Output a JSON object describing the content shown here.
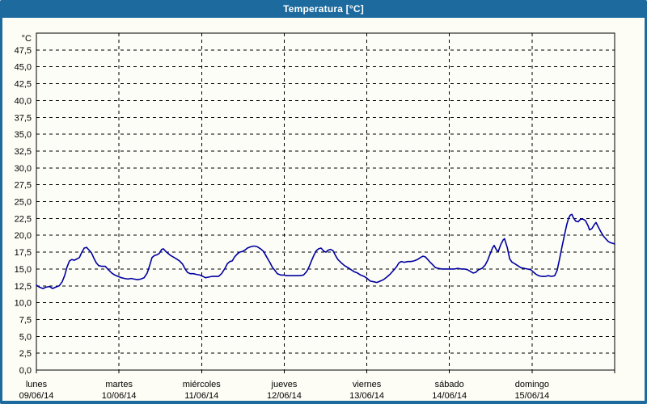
{
  "window": {
    "title": "Temperatura [°C]"
  },
  "colors": {
    "titlebar_bg": "#1d6a9e",
    "frame_border": "#1d6a9e",
    "title_text": "#ffffff",
    "content_bg": "#fdfdf5",
    "plot_bg": "#fdfdf7",
    "line": "#0000a0",
    "grid": "#000000",
    "axis": "#000000",
    "label_text": "#000000"
  },
  "chart_data": {
    "type": "line",
    "title": "Temperatura [°C]",
    "grid": "dashed",
    "legend": "none",
    "y_axis": {
      "unit_label": "°C",
      "min": 0,
      "max_visible_tick": 47.5,
      "axis_top": 50,
      "tick_step": 2.5,
      "tick_labels_bottom_to_top": [
        "0,0",
        "2,5",
        "5,0",
        "7,5",
        "10,0",
        "12,5",
        "15,0",
        "17,5",
        "20,0",
        "22,5",
        "25,0",
        "27,5",
        "30,0",
        "32,5",
        "35,0",
        "37,5",
        "40,0",
        "42,5",
        "45,0",
        "47,5"
      ]
    },
    "x_axis": {
      "total_hours": 168,
      "hours_per_day": 24,
      "days": [
        {
          "name": "lunes",
          "date": "09/06/14"
        },
        {
          "name": "martes",
          "date": "10/06/14"
        },
        {
          "name": "miércoles",
          "date": "11/06/14"
        },
        {
          "name": "jueves",
          "date": "12/06/14"
        },
        {
          "name": "viernes",
          "date": "13/06/14"
        },
        {
          "name": "sábado",
          "date": "14/06/14"
        },
        {
          "name": "domingo",
          "date": "15/06/14"
        }
      ]
    },
    "series": [
      {
        "name": "Temperatura",
        "color": "#0000a0",
        "points": [
          [
            0.0,
            12.6
          ],
          [
            0.9,
            12.3
          ],
          [
            1.9,
            12.1
          ],
          [
            2.8,
            12.3
          ],
          [
            3.8,
            12.4
          ],
          [
            4.7,
            12.1
          ],
          [
            5.6,
            12.3
          ],
          [
            6.6,
            12.5
          ],
          [
            7.5,
            13.1
          ],
          [
            8.2,
            14.0
          ],
          [
            8.9,
            15.3
          ],
          [
            9.6,
            16.2
          ],
          [
            10.3,
            16.4
          ],
          [
            11.0,
            16.3
          ],
          [
            11.8,
            16.5
          ],
          [
            12.5,
            16.7
          ],
          [
            13.2,
            17.5
          ],
          [
            13.9,
            18.1
          ],
          [
            14.6,
            18.2
          ],
          [
            15.3,
            17.8
          ],
          [
            16.0,
            17.4
          ],
          [
            16.7,
            16.6
          ],
          [
            17.4,
            15.9
          ],
          [
            18.1,
            15.5
          ],
          [
            19.0,
            15.4
          ],
          [
            20.0,
            15.4
          ],
          [
            20.9,
            14.9
          ],
          [
            21.9,
            14.4
          ],
          [
            22.8,
            14.1
          ],
          [
            23.7,
            13.9
          ],
          [
            24.7,
            13.7
          ],
          [
            25.6,
            13.6
          ],
          [
            26.6,
            13.5
          ],
          [
            27.5,
            13.6
          ],
          [
            28.4,
            13.5
          ],
          [
            29.4,
            13.4
          ],
          [
            30.3,
            13.5
          ],
          [
            31.3,
            13.7
          ],
          [
            32.2,
            14.4
          ],
          [
            32.9,
            15.5
          ],
          [
            33.6,
            16.7
          ],
          [
            34.3,
            17.0
          ],
          [
            35.0,
            17.1
          ],
          [
            35.7,
            17.3
          ],
          [
            36.4,
            17.9
          ],
          [
            36.9,
            18.0
          ],
          [
            37.6,
            17.6
          ],
          [
            38.3,
            17.3
          ],
          [
            39.0,
            17.0
          ],
          [
            39.7,
            16.8
          ],
          [
            40.7,
            16.5
          ],
          [
            41.6,
            16.2
          ],
          [
            42.5,
            15.7
          ],
          [
            43.2,
            15.0
          ],
          [
            43.9,
            14.5
          ],
          [
            44.7,
            14.3
          ],
          [
            45.6,
            14.3
          ],
          [
            46.5,
            14.2
          ],
          [
            47.5,
            14.1
          ],
          [
            48.4,
            13.9
          ],
          [
            49.1,
            13.7
          ],
          [
            50.1,
            13.8
          ],
          [
            51.0,
            13.9
          ],
          [
            51.9,
            13.9
          ],
          [
            52.9,
            13.9
          ],
          [
            53.8,
            14.3
          ],
          [
            54.8,
            15.1
          ],
          [
            55.5,
            15.8
          ],
          [
            56.2,
            16.1
          ],
          [
            56.9,
            16.2
          ],
          [
            57.6,
            16.8
          ],
          [
            58.3,
            17.2
          ],
          [
            59.0,
            17.5
          ],
          [
            59.9,
            17.6
          ],
          [
            60.6,
            17.8
          ],
          [
            61.3,
            18.1
          ],
          [
            62.3,
            18.3
          ],
          [
            63.2,
            18.4
          ],
          [
            64.2,
            18.3
          ],
          [
            65.1,
            18.0
          ],
          [
            66.0,
            17.6
          ],
          [
            67.0,
            16.7
          ],
          [
            67.9,
            15.9
          ],
          [
            68.6,
            15.2
          ],
          [
            69.3,
            14.8
          ],
          [
            70.0,
            14.3
          ],
          [
            71.0,
            14.1
          ],
          [
            71.9,
            14.1
          ],
          [
            72.8,
            14.0
          ],
          [
            74.0,
            14.0
          ],
          [
            75.2,
            14.0
          ],
          [
            76.4,
            14.0
          ],
          [
            77.6,
            14.1
          ],
          [
            78.5,
            14.6
          ],
          [
            79.2,
            15.3
          ],
          [
            79.9,
            16.2
          ],
          [
            80.6,
            17.0
          ],
          [
            81.3,
            17.7
          ],
          [
            82.0,
            18.0
          ],
          [
            82.7,
            18.1
          ],
          [
            83.4,
            17.7
          ],
          [
            84.1,
            17.5
          ],
          [
            84.8,
            17.8
          ],
          [
            85.5,
            17.9
          ],
          [
            86.2,
            17.7
          ],
          [
            86.9,
            17.0
          ],
          [
            87.6,
            16.4
          ],
          [
            88.6,
            15.9
          ],
          [
            89.5,
            15.5
          ],
          [
            90.5,
            15.2
          ],
          [
            91.4,
            14.9
          ],
          [
            92.3,
            14.6
          ],
          [
            93.3,
            14.4
          ],
          [
            94.2,
            14.1
          ],
          [
            95.2,
            13.9
          ],
          [
            96.1,
            13.6
          ],
          [
            97.0,
            13.2
          ],
          [
            98.0,
            13.1
          ],
          [
            98.9,
            13.0
          ],
          [
            99.9,
            13.2
          ],
          [
            100.8,
            13.4
          ],
          [
            101.8,
            13.8
          ],
          [
            102.7,
            14.2
          ],
          [
            103.6,
            14.7
          ],
          [
            104.6,
            15.3
          ],
          [
            105.3,
            15.9
          ],
          [
            106.0,
            16.1
          ],
          [
            106.9,
            16.0
          ],
          [
            107.9,
            16.1
          ],
          [
            108.8,
            16.1
          ],
          [
            109.7,
            16.2
          ],
          [
            110.7,
            16.4
          ],
          [
            111.6,
            16.7
          ],
          [
            112.3,
            16.9
          ],
          [
            113.0,
            16.8
          ],
          [
            113.7,
            16.4
          ],
          [
            114.4,
            16.0
          ],
          [
            115.2,
            15.6
          ],
          [
            115.9,
            15.2
          ],
          [
            116.8,
            15.1
          ],
          [
            117.7,
            15.0
          ],
          [
            118.7,
            15.0
          ],
          [
            119.6,
            15.0
          ],
          [
            120.5,
            15.0
          ],
          [
            121.5,
            15.0
          ],
          [
            122.4,
            15.1
          ],
          [
            123.4,
            15.0
          ],
          [
            124.3,
            15.0
          ],
          [
            125.2,
            14.9
          ],
          [
            126.2,
            14.6
          ],
          [
            126.9,
            14.4
          ],
          [
            127.6,
            14.5
          ],
          [
            128.5,
            14.9
          ],
          [
            129.5,
            15.1
          ],
          [
            130.4,
            15.6
          ],
          [
            131.1,
            16.3
          ],
          [
            131.8,
            17.2
          ],
          [
            132.5,
            18.1
          ],
          [
            133.0,
            18.5
          ],
          [
            133.7,
            17.8
          ],
          [
            134.2,
            17.6
          ],
          [
            134.9,
            18.6
          ],
          [
            135.6,
            19.3
          ],
          [
            136.0,
            19.5
          ],
          [
            136.8,
            18.2
          ],
          [
            137.5,
            16.5
          ],
          [
            138.2,
            16.0
          ],
          [
            138.9,
            15.8
          ],
          [
            139.8,
            15.5
          ],
          [
            140.7,
            15.2
          ],
          [
            141.7,
            15.1
          ],
          [
            142.6,
            15.0
          ],
          [
            143.6,
            14.9
          ],
          [
            144.5,
            14.5
          ],
          [
            145.2,
            14.2
          ],
          [
            145.9,
            14.0
          ],
          [
            146.9,
            13.9
          ],
          [
            147.8,
            13.9
          ],
          [
            148.7,
            14.0
          ],
          [
            149.7,
            13.9
          ],
          [
            150.6,
            14.0
          ],
          [
            151.3,
            14.8
          ],
          [
            152.0,
            16.5
          ],
          [
            152.7,
            18.3
          ],
          [
            153.4,
            20.0
          ],
          [
            154.1,
            21.6
          ],
          [
            154.6,
            22.5
          ],
          [
            155.1,
            23.0
          ],
          [
            155.6,
            23.1
          ],
          [
            156.0,
            22.6
          ],
          [
            156.7,
            22.1
          ],
          [
            157.4,
            22.0
          ],
          [
            158.1,
            22.4
          ],
          [
            158.8,
            22.4
          ],
          [
            159.5,
            22.2
          ],
          [
            160.3,
            21.4
          ],
          [
            160.7,
            20.8
          ],
          [
            161.4,
            21.0
          ],
          [
            162.1,
            21.6
          ],
          [
            162.6,
            21.9
          ],
          [
            163.3,
            21.2
          ],
          [
            164.0,
            20.5
          ],
          [
            164.7,
            19.9
          ],
          [
            165.4,
            19.5
          ],
          [
            166.1,
            19.1
          ],
          [
            166.8,
            18.9
          ],
          [
            167.5,
            18.8
          ],
          [
            168.0,
            18.7
          ]
        ]
      }
    ]
  }
}
